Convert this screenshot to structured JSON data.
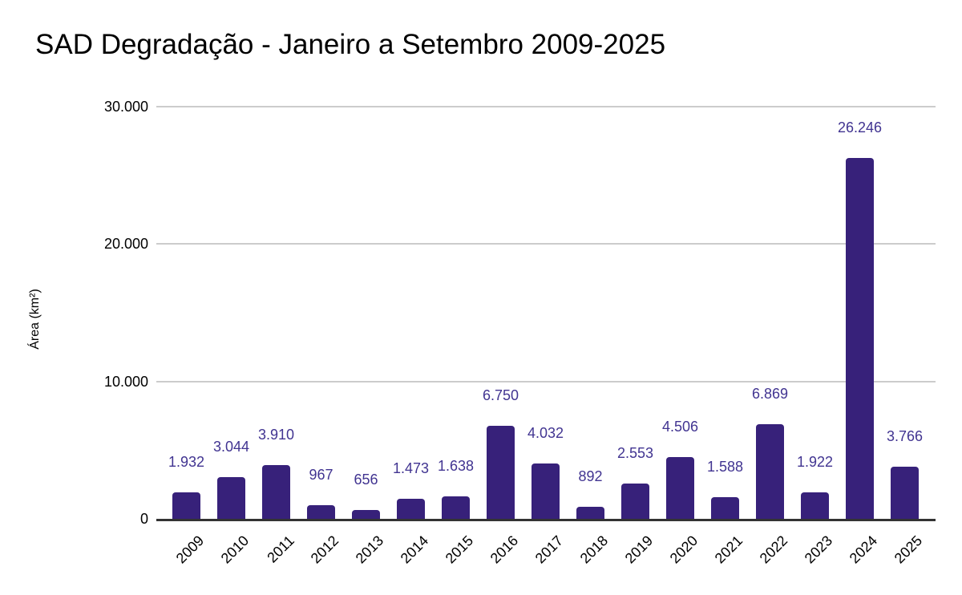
{
  "chart_data": {
    "type": "bar",
    "title": "SAD Degradação - Janeiro a Setembro 2009-2025",
    "ylabel": "Área (km²)",
    "xlabel": "",
    "categories": [
      "2009",
      "2010",
      "2011",
      "2012",
      "2013",
      "2014",
      "2015",
      "2016",
      "2017",
      "2018",
      "2019",
      "2020",
      "2021",
      "2022",
      "2023",
      "2024",
      "2025"
    ],
    "values": [
      1932,
      3044,
      3910,
      967,
      656,
      1473,
      1638,
      6750,
      4032,
      892,
      2553,
      4506,
      1588,
      6869,
      1922,
      26246,
      3766
    ],
    "value_labels": [
      "1.932",
      "3.044",
      "3.910",
      "967",
      "656",
      "1.473",
      "1.638",
      "6.750",
      "4.032",
      "892",
      "2.553",
      "4.506",
      "1.588",
      "6.869",
      "1.922",
      "26.246",
      "3.766"
    ],
    "ylim": [
      0,
      30000
    ],
    "yticks": [
      {
        "value": 0,
        "label": "0"
      },
      {
        "value": 10000,
        "label": "10.000"
      },
      {
        "value": 20000,
        "label": "20.000"
      },
      {
        "value": 30000,
        "label": "30.000"
      }
    ],
    "grid": true,
    "legend_position": "none",
    "colors": {
      "bar": "#37217a",
      "annotation": "#413491",
      "gridline": "#cccccc",
      "baseline": "#333333",
      "title": "#000000",
      "axis_text": "#000000"
    }
  }
}
